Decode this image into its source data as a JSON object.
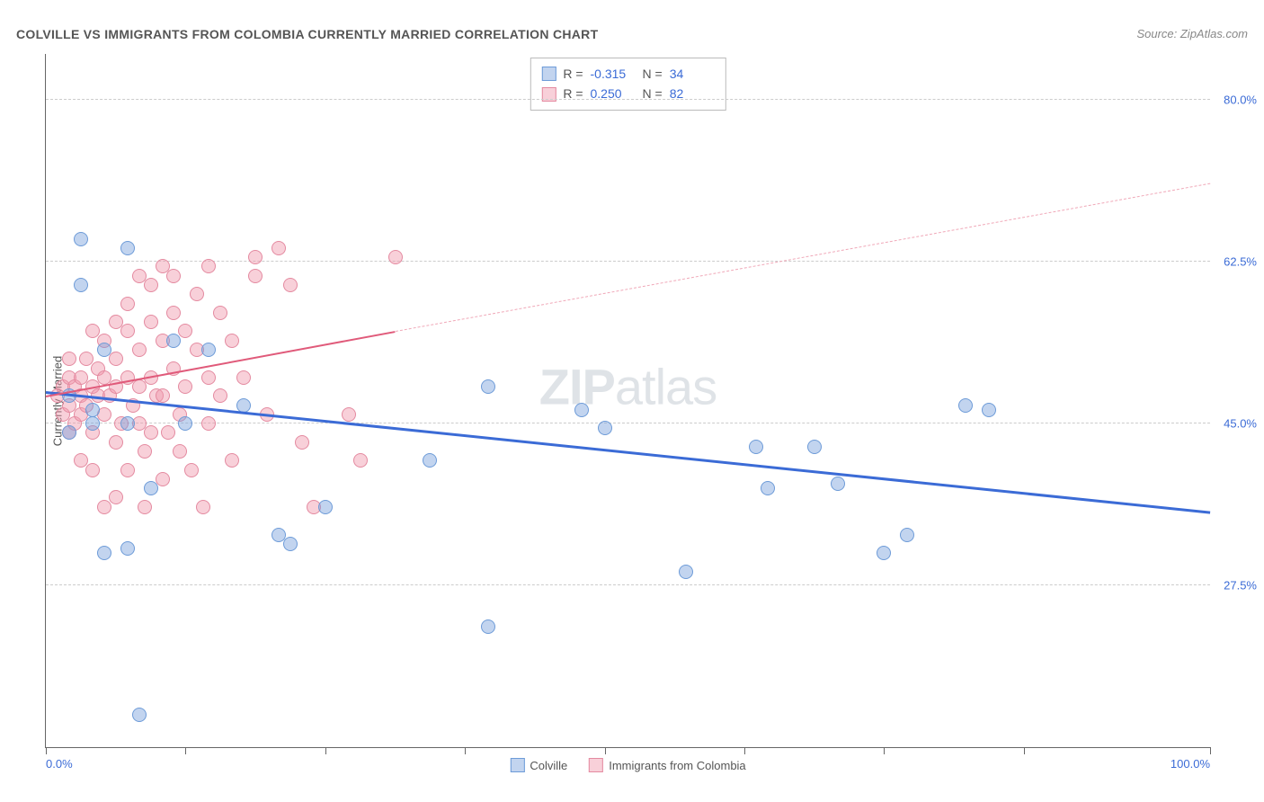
{
  "title": "COLVILLE VS IMMIGRANTS FROM COLOMBIA CURRENTLY MARRIED CORRELATION CHART",
  "source": "Source: ZipAtlas.com",
  "ylabel": "Currently Married",
  "watermark_bold": "ZIP",
  "watermark_rest": "atlas",
  "chart": {
    "type": "scatter",
    "background_color": "#ffffff",
    "grid_color": "#cccccc",
    "axis_color": "#666666",
    "xlim": [
      0,
      100
    ],
    "ylim": [
      10,
      85
    ],
    "x_ticks": [
      0,
      12,
      24,
      36,
      48,
      60,
      72,
      84,
      100
    ],
    "x_tick_labels_shown": {
      "0": "0.0%",
      "100": "100.0%"
    },
    "y_gridlines": [
      27.5,
      45.0,
      62.5,
      80.0
    ],
    "y_tick_labels": [
      "27.5%",
      "45.0%",
      "62.5%",
      "80.0%"
    ],
    "label_color": "#3b6bd6",
    "label_fontsize": 13
  },
  "series": {
    "blue": {
      "name": "Colville",
      "marker_fill": "rgba(120,160,220,0.45)",
      "marker_stroke": "#6d9bd8",
      "line_color": "#3b6bd6",
      "line_width": 2.5,
      "R": "-0.315",
      "N": "34",
      "trend": {
        "x1": 0,
        "y1": 48.5,
        "x2": 100,
        "y2": 35.5
      },
      "points": [
        [
          3,
          65
        ],
        [
          3,
          60
        ],
        [
          7,
          64
        ],
        [
          4,
          45
        ],
        [
          4,
          46.5
        ],
        [
          2,
          48
        ],
        [
          2,
          44
        ],
        [
          5,
          53
        ],
        [
          5,
          31
        ],
        [
          7,
          31.5
        ],
        [
          8,
          13.5
        ],
        [
          7,
          45
        ],
        [
          9,
          38
        ],
        [
          11,
          54
        ],
        [
          14,
          53
        ],
        [
          12,
          45
        ],
        [
          17,
          47
        ],
        [
          20,
          33
        ],
        [
          21,
          32
        ],
        [
          24,
          36
        ],
        [
          33,
          41
        ],
        [
          38,
          23
        ],
        [
          38,
          49
        ],
        [
          46,
          46.5
        ],
        [
          48,
          44.5
        ],
        [
          55,
          29
        ],
        [
          61,
          42.5
        ],
        [
          62,
          38
        ],
        [
          66,
          42.5
        ],
        [
          68,
          38.5
        ],
        [
          72,
          31
        ],
        [
          74,
          33
        ],
        [
          79,
          47
        ],
        [
          81,
          46.5
        ]
      ]
    },
    "pink": {
      "name": "Immigrants from Colombia",
      "marker_fill": "rgba(240,150,170,0.45)",
      "marker_stroke": "#e48aa0",
      "line_color": "#e05a7a",
      "line_width": 2,
      "dashed_color": "#f0a8b8",
      "R": "0.250",
      "N": "82",
      "trend_solid": {
        "x1": 0,
        "y1": 48,
        "x2": 30,
        "y2": 55
      },
      "trend_dashed": {
        "x1": 30,
        "y1": 55,
        "x2": 100,
        "y2": 71
      },
      "points": [
        [
          1,
          48
        ],
        [
          1.5,
          46
        ],
        [
          1.5,
          49
        ],
        [
          2,
          47
        ],
        [
          2,
          50
        ],
        [
          2,
          44
        ],
        [
          2,
          52
        ],
        [
          2.5,
          45
        ],
        [
          2.5,
          49
        ],
        [
          3,
          46
        ],
        [
          3,
          50
        ],
        [
          3,
          41
        ],
        [
          3,
          48
        ],
        [
          3.5,
          52
        ],
        [
          3.5,
          47
        ],
        [
          4,
          55
        ],
        [
          4,
          49
        ],
        [
          4,
          44
        ],
        [
          4,
          40
        ],
        [
          4.5,
          48
        ],
        [
          4.5,
          51
        ],
        [
          5,
          46
        ],
        [
          5,
          54
        ],
        [
          5,
          36
        ],
        [
          5,
          50
        ],
        [
          5.5,
          48
        ],
        [
          6,
          52
        ],
        [
          6,
          43
        ],
        [
          6,
          56
        ],
        [
          6,
          49
        ],
        [
          6,
          37
        ],
        [
          6.5,
          45
        ],
        [
          7,
          55
        ],
        [
          7,
          50
        ],
        [
          7,
          40
        ],
        [
          7,
          58
        ],
        [
          7.5,
          47
        ],
        [
          8,
          61
        ],
        [
          8,
          45
        ],
        [
          8,
          53
        ],
        [
          8,
          49
        ],
        [
          8.5,
          42
        ],
        [
          8.5,
          36
        ],
        [
          9,
          60
        ],
        [
          9,
          44
        ],
        [
          9,
          50
        ],
        [
          9,
          56
        ],
        [
          9.5,
          48
        ],
        [
          10,
          62
        ],
        [
          10,
          54
        ],
        [
          10,
          39
        ],
        [
          10,
          48
        ],
        [
          10.5,
          44
        ],
        [
          11,
          57
        ],
        [
          11,
          51
        ],
        [
          11,
          61
        ],
        [
          11.5,
          46
        ],
        [
          11.5,
          42
        ],
        [
          12,
          49
        ],
        [
          12,
          55
        ],
        [
          12.5,
          40
        ],
        [
          13,
          59
        ],
        [
          13,
          53
        ],
        [
          13.5,
          36
        ],
        [
          14,
          62
        ],
        [
          14,
          45
        ],
        [
          14,
          50
        ],
        [
          15,
          57
        ],
        [
          15,
          48
        ],
        [
          16,
          41
        ],
        [
          16,
          54
        ],
        [
          17,
          50
        ],
        [
          18,
          63
        ],
        [
          18,
          61
        ],
        [
          19,
          46
        ],
        [
          20,
          64
        ],
        [
          21,
          60
        ],
        [
          22,
          43
        ],
        [
          23,
          36
        ],
        [
          26,
          46
        ],
        [
          27,
          41
        ],
        [
          30,
          63
        ]
      ]
    }
  },
  "stats_labels": {
    "R": "R =",
    "N": "N ="
  },
  "legend": {
    "blue": "Colville",
    "pink": "Immigrants from Colombia"
  }
}
